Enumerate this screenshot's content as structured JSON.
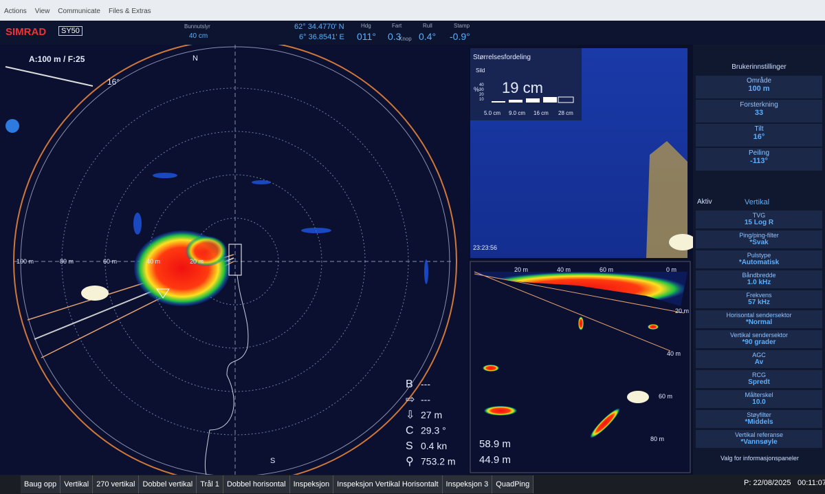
{
  "menu": [
    "Actions",
    "View",
    "Communicate",
    "Files & Extras"
  ],
  "header": {
    "brand": "SIMRAD",
    "model": "SY50",
    "bottom_lock_label": "Bunnutslyr",
    "bottom_lock_value": "40 cm",
    "lat": "62° 34.4770' N",
    "lon": "6° 36.8541' E",
    "readouts": [
      {
        "label": "Hdg",
        "value": "011°"
      },
      {
        "label": "Fart",
        "value": "0.3",
        "unit": "Knop"
      },
      {
        "label": "Rull",
        "value": "0.4°"
      },
      {
        "label": "Stamp",
        "value": "-0.9°"
      }
    ]
  },
  "radar": {
    "scale": "A:100 m / F:25",
    "tilt": "16°",
    "north": "N",
    "south": "S",
    "ranges": [
      "100 m",
      "80 m",
      "60 m",
      "40 m",
      "20 m"
    ],
    "info": [
      {
        "label": "B",
        "value": "---"
      },
      {
        "label": "⇨",
        "value": "---"
      },
      {
        "label": "⇩",
        "value": "27 m"
      },
      {
        "label": "C",
        "value": "29.3 °"
      },
      {
        "label": "S",
        "value": "0.4 kn"
      },
      {
        "label": "⚲",
        "value": "753.2 m"
      }
    ]
  },
  "size_panel": {
    "title": "Størrelsesfordeling",
    "species": "Sild",
    "size": "19 cm",
    "axis_label": "%",
    "yticks": [
      "40",
      "30",
      "20",
      "10"
    ],
    "xticks": [
      "5.0 cm",
      "9.0 cm",
      "16 cm",
      "28 cm"
    ],
    "time": "23:23:56"
  },
  "vertical_panel": {
    "top_ranges": [
      "20 m",
      "40 m",
      "60 m",
      "0 m"
    ],
    "side_ranges": [
      "20 m",
      "40 m",
      "60 m",
      "80 m"
    ],
    "horizontal": "58.9 m",
    "depth": "44.9 m"
  },
  "settings": {
    "title": "Brukerinnstillinger",
    "controls": [
      {
        "label": "Område",
        "value": "100 m"
      },
      {
        "label": "Forsterkning",
        "value": "33"
      },
      {
        "label": "Tilt",
        "value": "16°"
      },
      {
        "label": "Peiling",
        "value": "-113°"
      }
    ],
    "active_label": "Aktiv",
    "active_value": "Vertikal",
    "items": [
      {
        "label": "TVG",
        "value": "15 Log R"
      },
      {
        "label": "Ping/ping-filter",
        "value": "*Svak"
      },
      {
        "label": "Pulstype",
        "value": "*Automatisk"
      },
      {
        "label": "Båndbredde",
        "value": "1.0 kHz"
      },
      {
        "label": "Frekvens",
        "value": "57 kHz"
      },
      {
        "label": "Horisontal sendersektor",
        "value": "*Normal"
      },
      {
        "label": "Vertikal sendersektor",
        "value": "*90 grader"
      },
      {
        "label": "AGC",
        "value": "Av"
      },
      {
        "label": "RCG",
        "value": "Spredt"
      },
      {
        "label": "Målterskel",
        "value": "10.0"
      },
      {
        "label": "Støyfilter",
        "value": "*Middels"
      },
      {
        "label": "Vertikal referanse",
        "value": "*Vannsøyle"
      }
    ],
    "footer": "Valg for informasjonspaneler"
  },
  "tabs": [
    "Baug opp",
    "Vertikal",
    "270 vertikal",
    "Dobbel vertikal",
    "Trål 1",
    "Dobbel horisontal",
    "Inspeksjon",
    "Inspeksjon Vertikal Horisontalt",
    "Inspeksjon 3",
    "QuadPing"
  ],
  "status": {
    "date": "P: 22/08/2025",
    "time": "00:11:07"
  }
}
